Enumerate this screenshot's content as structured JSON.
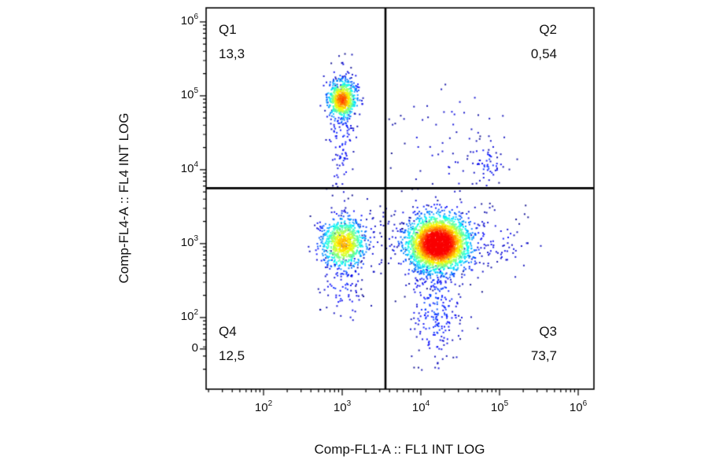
{
  "chart_data": {
    "type": "scatter",
    "subtype": "flow-cytometry-density-dot-plot",
    "x_label": "Comp-FL1-A :: FL1 INT LOG",
    "y_label": "Comp-FL4-A :: FL4 INT LOG",
    "x_scale": "log",
    "y_scale": "log",
    "background_color": "#ffffff",
    "axis_color": "#000000",
    "x_range_log": [
      1.27,
      6.2
    ],
    "y_range_log": [
      1.03,
      6.19
    ],
    "x_ticks": [
      {
        "base": "10",
        "exp": "2",
        "log": 2
      },
      {
        "base": "10",
        "exp": "3",
        "log": 3
      },
      {
        "base": "10",
        "exp": "4",
        "log": 4
      },
      {
        "base": "10",
        "exp": "5",
        "log": 5
      },
      {
        "base": "10",
        "exp": "6",
        "log": 6
      }
    ],
    "y_ticks": [
      {
        "base": "10",
        "exp": "6",
        "log": 6
      },
      {
        "base": "10",
        "exp": "5",
        "log": 5
      },
      {
        "base": "10",
        "exp": "4",
        "log": 4
      },
      {
        "base": "10",
        "exp": "3",
        "log": 3
      },
      {
        "base": "10",
        "exp": "2",
        "log": 2
      },
      {
        "base": "0",
        "exp": "",
        "log": 1.574
      }
    ],
    "gates": {
      "x_log": 3.55,
      "y_log": 3.75
    },
    "quadrants": [
      {
        "id": "Q1",
        "percent": "13,3"
      },
      {
        "id": "Q2",
        "percent": "0,54"
      },
      {
        "id": "Q3",
        "percent": "73,7"
      },
      {
        "id": "Q4",
        "percent": "12,5"
      }
    ],
    "colormap_stops": [
      {
        "v": 0,
        "c": "#000083"
      },
      {
        "v": 0.125,
        "c": "#0000ff"
      },
      {
        "v": 0.375,
        "c": "#00ffff"
      },
      {
        "v": 0.625,
        "c": "#ffff00"
      },
      {
        "v": 0.875,
        "c": "#ff0000"
      },
      {
        "v": 1,
        "c": "#800000"
      }
    ],
    "populations": [
      {
        "name": "bridge-scatter",
        "cx": 3.6,
        "cy": 3.05,
        "sx": 0.45,
        "sy": 0.3,
        "n": 130,
        "peak": 0.06
      },
      {
        "name": "q1-vertical-tail",
        "cx": 3.0,
        "cy": 4.55,
        "sx": 0.09,
        "sy": 0.45,
        "n": 150,
        "peak": 0.15
      },
      {
        "name": "q4-lower-tail",
        "cx": 3.0,
        "cy": 2.45,
        "sx": 0.13,
        "sy": 0.3,
        "n": 90,
        "peak": 0.15
      },
      {
        "name": "q3-lower-tail",
        "cx": 4.18,
        "cy": 2.2,
        "sx": 0.16,
        "sy": 0.4,
        "n": 260,
        "peak": 0.18
      },
      {
        "name": "q2-sparse",
        "cx": 4.4,
        "cy": 4.35,
        "sx": 0.4,
        "sy": 0.45,
        "n": 70,
        "peak": 0.08
      },
      {
        "name": "q2-small-cluster",
        "cx": 4.85,
        "cy": 4.1,
        "sx": 0.1,
        "sy": 0.16,
        "n": 45,
        "peak": 0.15
      },
      {
        "name": "q3-right-scatter",
        "cx": 4.95,
        "cy": 3.0,
        "sx": 0.25,
        "sy": 0.22,
        "n": 80,
        "peak": 0.1
      },
      {
        "name": "q1-main-population",
        "cx": 3.0,
        "cy": 4.95,
        "sx": 0.09,
        "sy": 0.13,
        "n": 700,
        "peak": 0.8
      },
      {
        "name": "q4-main-population",
        "cx": 3.02,
        "cy": 3.0,
        "sx": 0.14,
        "sy": 0.17,
        "n": 850,
        "peak": 0.7
      },
      {
        "name": "q3-main-population",
        "cx": 4.22,
        "cy": 3.0,
        "sx": 0.19,
        "sy": 0.18,
        "n": 3000,
        "peak": 1.05
      }
    ]
  }
}
